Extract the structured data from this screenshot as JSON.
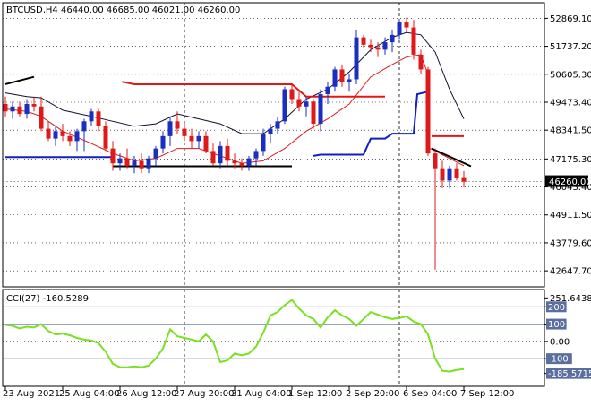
{
  "window": {
    "symbol_line": "BTCUSD,H4  46440.00 46685.00 46021.00 46260.00",
    "indicator_line": "CCI(27) -160.5289"
  },
  "colors": {
    "background": "#ffffff",
    "frame": "#000000",
    "bull_candle": "#1a2ec0",
    "bear_candle": "#e01818",
    "upper_band": "#101030",
    "lower_band": "#e01818",
    "resistance": "#e01818",
    "support": "#1020c0",
    "cci_line": "#7ae020",
    "grid": "#000000",
    "cci_level": "#5a6ea0",
    "price_tag": "#000000"
  },
  "chart_data": [
    {
      "type": "candlestick",
      "title": "BTCUSD,H4",
      "ylim": [
        42000,
        53500
      ],
      "y_ticks": [
        "52869.10",
        "51737.20",
        "50605.30",
        "49473.40",
        "48341.50",
        "47175.30",
        "46043.40",
        "44911.50",
        "43779.60",
        "42647.70"
      ],
      "y_tick_values": [
        52869.1,
        51737.2,
        50605.3,
        49473.4,
        48341.5,
        47175.3,
        46043.4,
        44911.5,
        43779.6,
        42647.7
      ],
      "current_price": "46260.00",
      "current_price_value": 46260,
      "x_ticks": [
        "23 Aug 2021",
        "25 Aug 04:00",
        "26 Aug 12:00",
        "27 Aug 20:00",
        "31 Aug 04:00",
        "1 Sep 12:00",
        "2 Sep 20:00",
        "6 Sep 04:00",
        "7 Sep 12:00"
      ],
      "x_tick_bars": [
        0,
        8,
        16,
        24,
        32,
        40,
        48,
        56,
        64
      ],
      "vertical_separators_bars": [
        25,
        55
      ],
      "candles": [
        [
          49400,
          49700,
          48900,
          49100
        ],
        [
          49100,
          49500,
          48800,
          49300
        ],
        [
          49300,
          49500,
          48900,
          49000
        ],
        [
          49000,
          49600,
          48800,
          49400
        ],
        [
          49400,
          49700,
          49100,
          49300
        ],
        [
          49300,
          49700,
          48300,
          48400
        ],
        [
          48400,
          48700,
          47900,
          48000
        ],
        [
          48000,
          48500,
          47700,
          48300
        ],
        [
          48300,
          48600,
          47900,
          48100
        ],
        [
          48100,
          48300,
          47700,
          47900
        ],
        [
          47900,
          48400,
          47500,
          48300
        ],
        [
          48300,
          48800,
          47500,
          48700
        ],
        [
          48700,
          49200,
          48500,
          49100
        ],
        [
          49100,
          49200,
          48300,
          48500
        ],
        [
          48500,
          48700,
          47500,
          47600
        ],
        [
          47600,
          47900,
          46700,
          47000
        ],
        [
          47000,
          47400,
          46700,
          47200
        ],
        [
          47200,
          47600,
          46800,
          46900
        ],
        [
          46900,
          47300,
          46600,
          47100
        ],
        [
          47100,
          47400,
          46600,
          46800
        ],
        [
          46800,
          47300,
          46600,
          47200
        ],
        [
          47200,
          47700,
          46900,
          47600
        ],
        [
          47600,
          48300,
          47400,
          48100
        ],
        [
          48100,
          48900,
          47700,
          48700
        ],
        [
          48700,
          49100,
          48200,
          48400
        ],
        [
          48400,
          48600,
          47900,
          48100
        ],
        [
          48100,
          48400,
          47600,
          47900
        ],
        [
          47900,
          48300,
          47600,
          48100
        ],
        [
          48100,
          48300,
          47400,
          47500
        ],
        [
          47500,
          47800,
          46900,
          47000
        ],
        [
          47000,
          47900,
          46800,
          47700
        ],
        [
          47700,
          48000,
          46900,
          47100
        ],
        [
          47100,
          47400,
          46800,
          47000
        ],
        [
          47000,
          47200,
          46700,
          46900
        ],
        [
          46900,
          47300,
          46700,
          47200
        ],
        [
          47200,
          47600,
          46900,
          47500
        ],
        [
          47500,
          48400,
          47300,
          48200
        ],
        [
          48200,
          48600,
          47800,
          48400
        ],
        [
          48400,
          48900,
          48200,
          48700
        ],
        [
          48700,
          50100,
          48600,
          50000
        ],
        [
          50000,
          50200,
          49400,
          49600
        ],
        [
          49600,
          49900,
          49100,
          49300
        ],
        [
          49300,
          49700,
          48900,
          49500
        ],
        [
          49500,
          49600,
          48400,
          48600
        ],
        [
          48600,
          50000,
          48300,
          49800
        ],
        [
          49800,
          50300,
          49400,
          50100
        ],
        [
          50100,
          50900,
          49900,
          50800
        ],
        [
          50800,
          51000,
          50100,
          50300
        ],
        [
          50300,
          50600,
          49900,
          50400
        ],
        [
          50400,
          52400,
          50200,
          52100
        ],
        [
          52100,
          52200,
          51700,
          51800
        ],
        [
          51800,
          52000,
          51500,
          51700
        ],
        [
          51700,
          51900,
          51300,
          51600
        ],
        [
          51600,
          52100,
          51400,
          51900
        ],
        [
          51900,
          52400,
          51500,
          52200
        ],
        [
          52200,
          52800,
          52000,
          52700
        ],
        [
          52700,
          52900,
          52300,
          52500
        ],
        [
          52500,
          52800,
          51200,
          51400
        ],
        [
          51400,
          51600,
          50600,
          50800
        ],
        [
          50800,
          50900,
          47300,
          47400
        ],
        [
          47400,
          47600,
          42700,
          46800
        ],
        [
          46800,
          47100,
          46000,
          46300
        ],
        [
          46300,
          46900,
          46000,
          46800
        ],
        [
          46800,
          47000,
          46300,
          46400
        ],
        [
          46440,
          46685,
          46021,
          46260
        ]
      ],
      "upper_band": [
        [
          0,
          49850
        ],
        [
          3,
          49700
        ],
        [
          5,
          49650
        ],
        [
          8,
          49150
        ],
        [
          12,
          48900
        ],
        [
          15,
          48700
        ],
        [
          18,
          48500
        ],
        [
          21,
          48600
        ],
        [
          24,
          49000
        ],
        [
          27,
          48800
        ],
        [
          30,
          48600
        ],
        [
          33,
          48200
        ],
        [
          36,
          48200
        ],
        [
          39,
          48800
        ],
        [
          42,
          49600
        ],
        [
          45,
          50000
        ],
        [
          48,
          50700
        ],
        [
          51,
          51600
        ],
        [
          54,
          52100
        ],
        [
          56,
          52300
        ],
        [
          58,
          52200
        ],
        [
          60,
          51500
        ],
        [
          62,
          50000
        ],
        [
          64,
          48800
        ]
      ],
      "lower_band": [
        [
          0,
          49200
        ],
        [
          3,
          49100
        ],
        [
          5,
          48900
        ],
        [
          8,
          48300
        ],
        [
          12,
          47800
        ],
        [
          15,
          47400
        ],
        [
          18,
          47100
        ],
        [
          21,
          47200
        ],
        [
          24,
          47600
        ],
        [
          27,
          47600
        ],
        [
          30,
          47300
        ],
        [
          33,
          47000
        ],
        [
          36,
          47100
        ],
        [
          39,
          47600
        ],
        [
          42,
          48300
        ],
        [
          45,
          48800
        ],
        [
          48,
          49400
        ],
        [
          51,
          50500
        ],
        [
          54,
          51000
        ],
        [
          56,
          51300
        ],
        [
          58,
          51400
        ],
        [
          59,
          50600
        ]
      ],
      "lower_band_tail": [
        [
          59.3,
          47600
        ],
        [
          62,
          47200
        ],
        [
          64,
          46900
        ]
      ],
      "resistance_steps": [
        [
          [
            16.3,
            50300
          ],
          [
            18,
            50200
          ],
          [
            40,
            50200
          ],
          [
            42,
            49700
          ],
          [
            53,
            49700
          ]
        ],
        [
          [
            59.5,
            48100
          ],
          [
            64,
            48100
          ]
        ]
      ],
      "support_steps": [
        [
          [
            0,
            47250
          ],
          [
            15,
            47250
          ]
        ],
        [
          [
            43,
            47300
          ],
          [
            44,
            47350
          ],
          [
            50,
            47350
          ],
          [
            51,
            48000
          ],
          [
            53,
            48000
          ],
          [
            54,
            48200
          ],
          [
            57,
            48200
          ],
          [
            57.5,
            49800
          ],
          [
            59,
            49900
          ],
          [
            59,
            49900
          ]
        ]
      ],
      "trend_lines": [
        {
          "from": [
            0,
            50200
          ],
          "to": [
            4,
            50500
          ],
          "color": "#000000"
        },
        {
          "from": [
            15,
            46880
          ],
          "to": [
            40,
            46880
          ],
          "color": "#000000"
        },
        {
          "from": [
            59.5,
            47600
          ],
          "to": [
            65,
            46880
          ],
          "color": "#000000"
        }
      ]
    },
    {
      "type": "line",
      "title": "CCI(27)",
      "ylim": [
        -260,
        300
      ],
      "y_ticks": [
        "251.6438",
        "200",
        "100",
        "0.00",
        "-100",
        "-185.5715"
      ],
      "y_tick_values": [
        251.6438,
        200,
        100,
        0,
        -100,
        -185.5715
      ],
      "highlighted_ticks": [
        "200",
        "100",
        "-100",
        "-185.5715"
      ],
      "levels": [
        200,
        100,
        -100
      ],
      "series": [
        {
          "values": [
            95,
            90,
            75,
            85,
            80,
            100,
            60,
            40,
            45,
            35,
            20,
            10,
            5,
            -10,
            -60,
            -130,
            -150,
            -150,
            -145,
            -150,
            -140,
            -100,
            -40,
            70,
            30,
            20,
            10,
            0,
            40,
            0,
            -120,
            -110,
            -70,
            -80,
            -70,
            -30,
            50,
            150,
            170,
            210,
            240,
            190,
            150,
            130,
            80,
            140,
            180,
            150,
            130,
            90,
            130,
            170,
            155,
            140,
            130,
            135,
            145,
            115,
            100,
            40,
            -100,
            -170,
            -175,
            -165,
            -160
          ]
        }
      ]
    }
  ]
}
